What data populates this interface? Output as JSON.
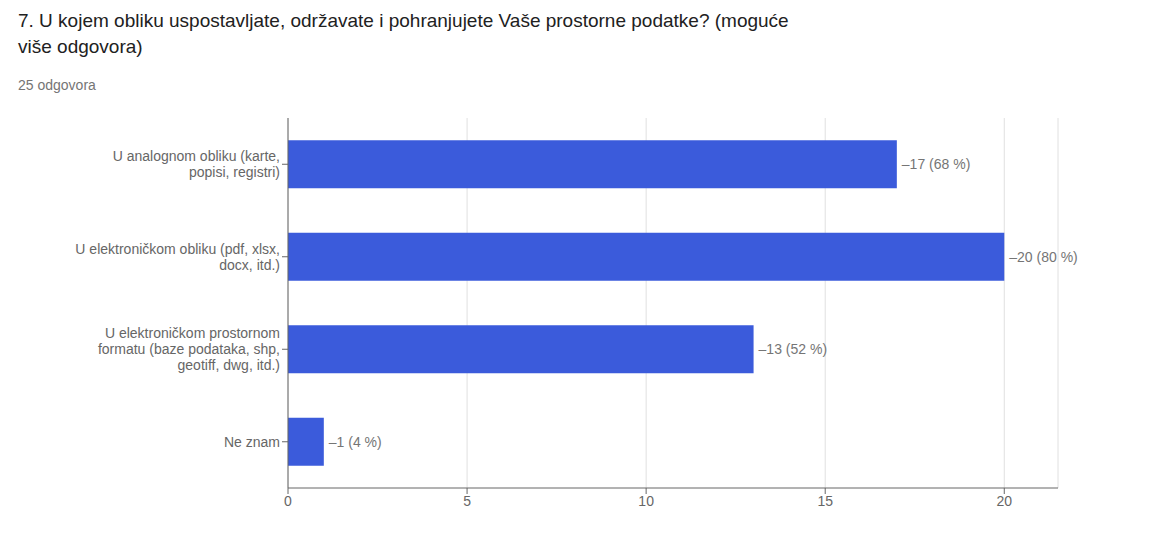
{
  "chart_data": {
    "type": "bar",
    "orientation": "horizontal",
    "title": "7. U kojem obliku uspostavljate, održavate i pohranjujete Vaše prostorne podatke? (moguće\nviše odgovora)",
    "subtitle": "25 odgovora",
    "categories": [
      "Ne znam",
      "U elektroničkom prostornom\nformatu (baze podataka, shp,\ngeotiff, dwg, itd.)",
      "U elektroničkom obliku (pdf, xlsx,\ndocx, itd.)",
      "U analognom obliku (karte,\npopisi, registri)"
    ],
    "values": [
      1,
      13,
      20,
      17
    ],
    "value_labels": [
      "–1 (4 %)",
      "–13 (52 %)",
      "–20 (80 %)",
      "–17 (68 %)"
    ],
    "data_labels": true,
    "color": "#3b5bdb",
    "xlim": [
      0,
      21.5
    ],
    "xticks": [
      0,
      5,
      10,
      15,
      20
    ],
    "grid": true
  }
}
